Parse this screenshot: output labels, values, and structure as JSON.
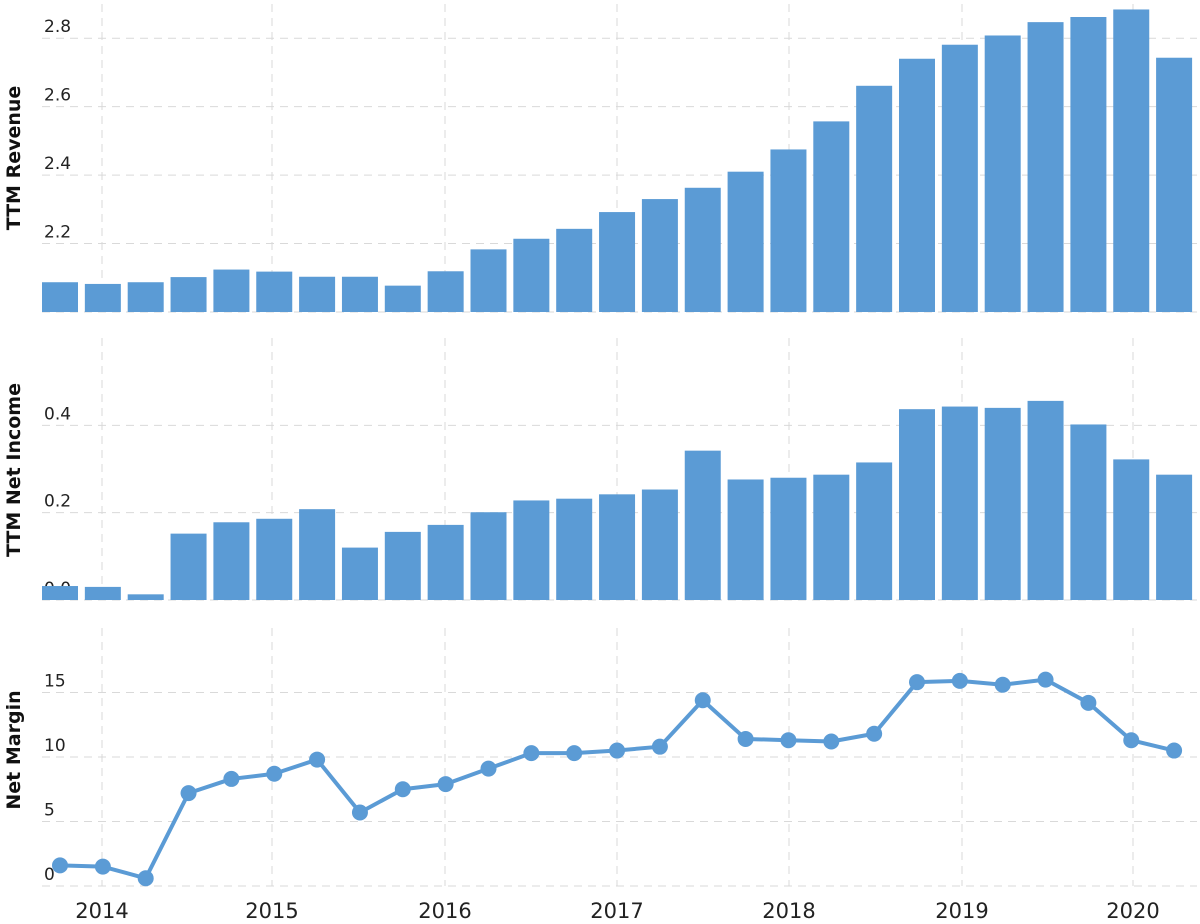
{
  "chart_data": [
    {
      "type": "bar",
      "ylabel": "TTM Revenue",
      "yticks": [
        "2.0",
        "2.2",
        "2.4",
        "2.6",
        "2.8"
      ],
      "ylim": [
        2.0,
        2.9
      ],
      "color": "#5b9bd5",
      "x": [
        "2013-Q4",
        "2014-Q1",
        "2014-Q2",
        "2014-Q3",
        "2014-Q4",
        "2015-Q1",
        "2015-Q2",
        "2015-Q3",
        "2015-Q4",
        "2016-Q1",
        "2016-Q2",
        "2016-Q3",
        "2016-Q4",
        "2017-Q1",
        "2017-Q2",
        "2017-Q3",
        "2017-Q4",
        "2018-Q1",
        "2018-Q2",
        "2018-Q3",
        "2018-Q4",
        "2019-Q1",
        "2019-Q2",
        "2019-Q3",
        "2019-Q4",
        "2020-Q1",
        "2020-Q2"
      ],
      "values": [
        2.087,
        2.082,
        2.087,
        2.102,
        2.124,
        2.118,
        2.103,
        2.103,
        2.077,
        2.119,
        2.183,
        2.214,
        2.243,
        2.292,
        2.33,
        2.363,
        2.41,
        2.475,
        2.557,
        2.661,
        2.74,
        2.781,
        2.808,
        2.847,
        2.862,
        2.884,
        2.743
      ],
      "grid": true
    },
    {
      "type": "bar",
      "ylabel": "TTM Net Income",
      "yticks": [
        "0.0",
        "0.2",
        "0.4"
      ],
      "ylim": [
        0.0,
        0.6
      ],
      "color": "#5b9bd5",
      "x": [
        "2013-Q4",
        "2014-Q1",
        "2014-Q2",
        "2014-Q3",
        "2014-Q4",
        "2015-Q1",
        "2015-Q2",
        "2015-Q3",
        "2015-Q4",
        "2016-Q1",
        "2016-Q2",
        "2016-Q3",
        "2016-Q4",
        "2017-Q1",
        "2017-Q2",
        "2017-Q3",
        "2017-Q4",
        "2018-Q1",
        "2018-Q2",
        "2018-Q3",
        "2018-Q4",
        "2019-Q1",
        "2019-Q2",
        "2019-Q3",
        "2019-Q4",
        "2020-Q1",
        "2020-Q2"
      ],
      "values": [
        0.032,
        0.03,
        0.013,
        0.152,
        0.178,
        0.186,
        0.208,
        0.12,
        0.156,
        0.172,
        0.201,
        0.228,
        0.232,
        0.242,
        0.253,
        0.342,
        0.276,
        0.28,
        0.287,
        0.315,
        0.437,
        0.443,
        0.44,
        0.456,
        0.402,
        0.322,
        0.287
      ],
      "grid": true
    },
    {
      "type": "line",
      "ylabel": "Net Margin",
      "yticks": [
        "0",
        "5",
        "10",
        "15"
      ],
      "ylim": [
        0,
        20
      ],
      "color": "#5b9bd5",
      "x": [
        "2013-Q4",
        "2014-Q1",
        "2014-Q2",
        "2014-Q3",
        "2014-Q4",
        "2015-Q1",
        "2015-Q2",
        "2015-Q3",
        "2015-Q4",
        "2016-Q1",
        "2016-Q2",
        "2016-Q3",
        "2016-Q4",
        "2017-Q1",
        "2017-Q2",
        "2017-Q3",
        "2017-Q4",
        "2018-Q1",
        "2018-Q2",
        "2018-Q3",
        "2018-Q4",
        "2019-Q1",
        "2019-Q2",
        "2019-Q3",
        "2019-Q4",
        "2020-Q1",
        "2020-Q2"
      ],
      "values": [
        1.6,
        1.5,
        0.6,
        7.2,
        8.3,
        8.7,
        9.8,
        5.7,
        7.5,
        7.9,
        9.1,
        10.3,
        10.3,
        10.5,
        10.8,
        14.4,
        11.4,
        11.3,
        11.2,
        11.8,
        15.8,
        15.9,
        15.6,
        16.0,
        14.2,
        11.3,
        10.5
      ],
      "grid": true
    }
  ],
  "x_axis": {
    "labels": [
      "2014",
      "2015",
      "2016",
      "2017",
      "2018",
      "2019",
      "2020"
    ]
  }
}
